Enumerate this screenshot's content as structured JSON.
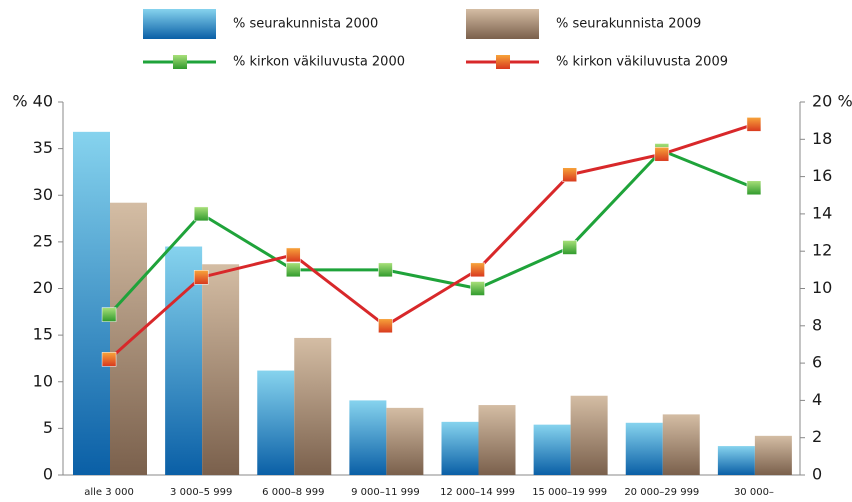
{
  "chart_data": {
    "type": "bar",
    "categories": [
      "alle 3 000",
      "3 000–5 999",
      "6 000–8 999",
      "9 000–11 999",
      "12 000–14 999",
      "15 000–19 999",
      "20 000–29 999",
      "30 000–"
    ],
    "series": [
      {
        "name": "% seurakunnista 2000",
        "type": "bar",
        "color": "#2b8fcc",
        "values": [
          36.8,
          24.5,
          11.2,
          8.0,
          5.7,
          5.4,
          5.6,
          3.1
        ]
      },
      {
        "name": "% seurakunnista 2009",
        "type": "bar",
        "color": "#a88c74",
        "values": [
          29.2,
          22.6,
          14.7,
          7.2,
          7.5,
          8.5,
          6.5,
          4.2
        ]
      },
      {
        "name": "% kirkon väkiluvusta 2000",
        "type": "line",
        "axis": "y2",
        "color": "#1fa33a",
        "values": [
          8.6,
          14.0,
          11.0,
          11.0,
          10.0,
          12.2,
          17.4,
          15.4
        ]
      },
      {
        "name": "% kirkon väkiluvusta 2009",
        "type": "line",
        "axis": "y2",
        "color": "#d8282a",
        "values": [
          6.2,
          10.6,
          11.8,
          8.0,
          11.0,
          16.1,
          17.2,
          18.8
        ]
      }
    ],
    "ylim": [
      0,
      40
    ],
    "yticks": [
      0,
      5,
      10,
      15,
      20,
      25,
      30,
      35,
      {
        "value": 40,
        "label": "% 40"
      }
    ],
    "y2lim": [
      0,
      20
    ],
    "y2ticks": [
      0,
      2,
      4,
      6,
      8,
      10,
      12,
      14,
      16,
      18,
      {
        "value": 20,
        "label": "20 %"
      }
    ]
  }
}
